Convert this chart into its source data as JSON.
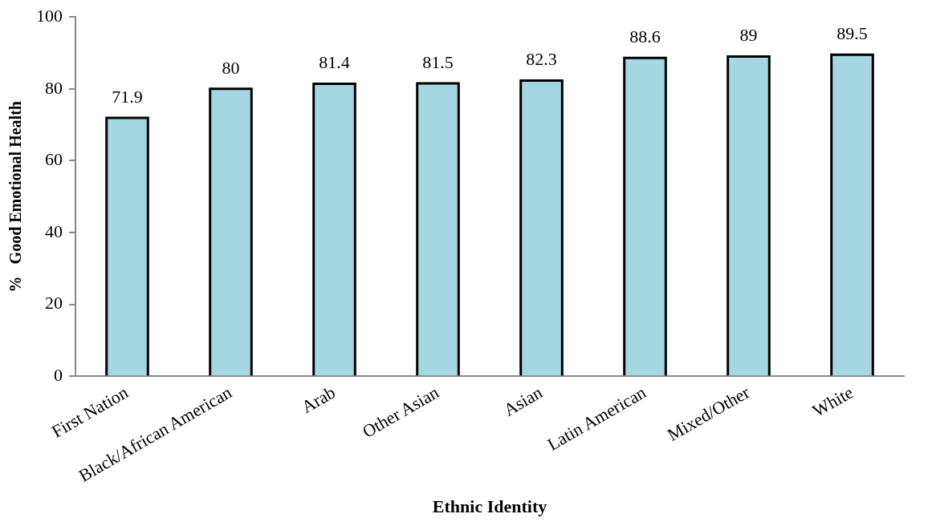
{
  "chart_data": {
    "type": "bar",
    "xlabel": "Ethnic Identity",
    "ylabel": "%   Good Emotional Health",
    "categories": [
      "First Nation",
      "Black/African American",
      "Arab",
      "Other Asian",
      "Asian",
      "Latin American",
      "Mixed/Other",
      "White"
    ],
    "values": [
      71.9,
      80,
      81.4,
      81.5,
      82.3,
      88.6,
      89,
      89.5
    ],
    "color": "#a5d7e2",
    "ylim": [
      0,
      100
    ],
    "yticks": [
      0,
      20,
      40,
      60,
      80,
      100
    ],
    "grid": false,
    "legend": false,
    "data_labels": true
  }
}
